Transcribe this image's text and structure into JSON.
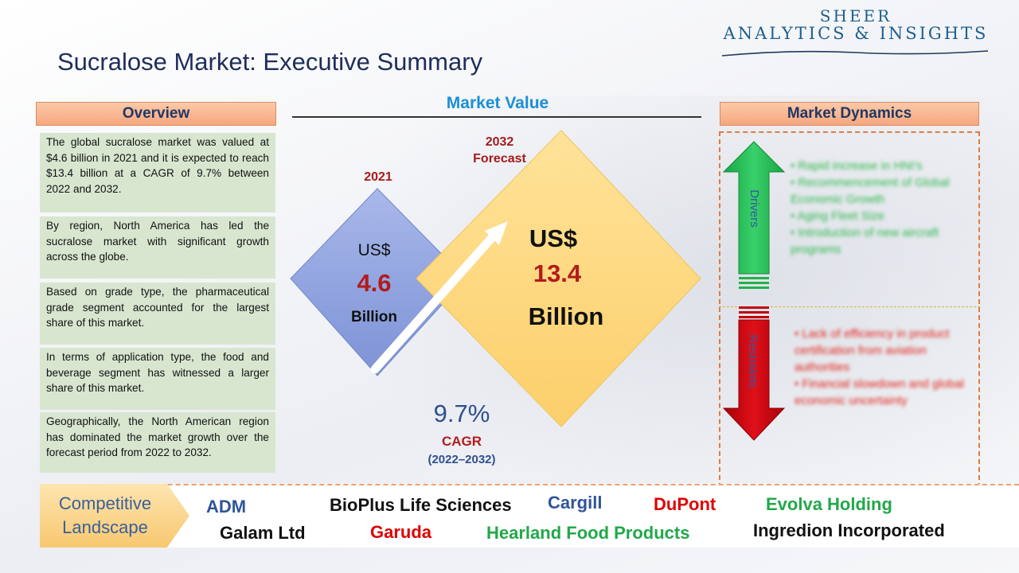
{
  "logo": {
    "line1": "SHEER",
    "line2": "ANALYTICS & INSIGHTS"
  },
  "title": "Sucralose Market: Executive Summary",
  "overview": {
    "heading": "Overview",
    "items": [
      "The global sucralose market was valued at $4.6 billion in 2021 and it is expected to reach $13.4 billion at a CAGR of 9.7% between 2022 and 2032.",
      "By region, North America has led the sucralose market with significant growth across the globe.",
      "Based on grade type, the pharmaceutical grade segment accounted for the largest share of this market.",
      "In terms of application type, the food and beverage segment has witnessed a larger share of this market.",
      "Geographically, the North American region has dominated the market growth over the forecast period from 2022 to 2032."
    ]
  },
  "market_value": {
    "heading": "Market Value",
    "y2021": {
      "label": "2021",
      "currency": "US$",
      "value": "4.6",
      "unit": "Billion"
    },
    "y2032": {
      "label1": "2032",
      "label2": "Forecast",
      "currency": "US$",
      "value": "13.4",
      "unit": "Billion"
    },
    "cagr": {
      "value": "9.7%",
      "label": "CAGR",
      "period": "(2022–2032)"
    }
  },
  "dynamics": {
    "heading": "Market Dynamics",
    "drivers_label": "Drivers",
    "restraints_label": "Restraints",
    "drivers": [
      "Rapid increase in HNI's",
      "Recommencement of Global Economic Growth",
      "Aging Fleet Size",
      "Introduction of new aircraft programs"
    ],
    "restraints": [
      "Lack of efficiency in product certification from aviation authorities",
      "Financial slowdown and global economic uncertainty"
    ],
    "colors": {
      "drivers": "#22b14c",
      "restraints": "#c0000a"
    }
  },
  "competitive": {
    "label_line1": "Competitive",
    "label_line2": "Landscape",
    "companies": [
      {
        "name": "ADM",
        "color": "#2f5597"
      },
      {
        "name": "BioPlus Life Sciences",
        "color": "#111111"
      },
      {
        "name": "Cargill",
        "color": "#2f5597"
      },
      {
        "name": "DuPont",
        "color": "#e00000"
      },
      {
        "name": "Evolva Holding",
        "color": "#22a84a"
      },
      {
        "name": "Galam Ltd",
        "color": "#111111"
      },
      {
        "name": "Garuda",
        "color": "#e00000"
      },
      {
        "name": "Hearland Food Products",
        "color": "#22a84a"
      },
      {
        "name": "Ingredion Incorporated",
        "color": "#111111"
      }
    ]
  }
}
